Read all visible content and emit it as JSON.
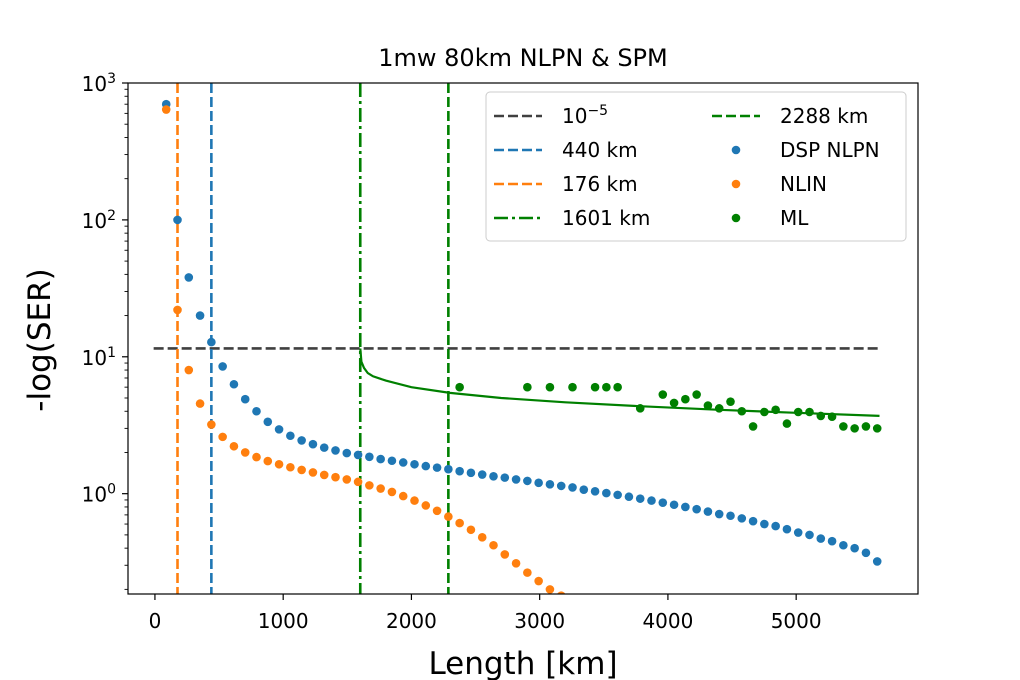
{
  "chart_data": {
    "type": "scatter",
    "title": "1mw 80km NLPN & SPM",
    "xlabel": "Length [km]",
    "ylabel": "-log(SER)",
    "yscale": "log",
    "xlim": [
      -210,
      5950
    ],
    "ylim": [
      0.185,
      1000
    ],
    "grid": false,
    "legend_placement": "top-right",
    "x_ticks": [
      {
        "value": 0,
        "label": "0"
      },
      {
        "value": 1000,
        "label": "1000"
      },
      {
        "value": 2000,
        "label": "2000"
      },
      {
        "value": 3000,
        "label": "3000"
      },
      {
        "value": 4000,
        "label": "4000"
      },
      {
        "value": 5000,
        "label": "5000"
      }
    ],
    "y_ticks": [
      {
        "value": 1,
        "base": "10",
        "exp": "0"
      },
      {
        "value": 10,
        "base": "10",
        "exp": "1"
      },
      {
        "value": 100,
        "base": "10",
        "exp": "2"
      },
      {
        "value": 1000,
        "base": "10",
        "exp": "3"
      }
    ],
    "reference_lines": [
      {
        "kind": "hline",
        "y": 11.5,
        "x_range": [
          -10,
          5650
        ],
        "color": "#404040",
        "dash": "dashed",
        "legend": {
          "base": "10",
          "exp": "−5"
        }
      },
      {
        "kind": "vline",
        "x": 440,
        "color": "#1f77b4",
        "dash": "dashed",
        "legend": "440 km"
      },
      {
        "kind": "vline",
        "x": 176,
        "color": "#ff7f0e",
        "dash": "dashed",
        "legend": "176 km"
      },
      {
        "kind": "vline",
        "x": 1601,
        "color": "#008000",
        "dash": "dashdot",
        "legend": "1601 km"
      },
      {
        "kind": "vline",
        "x": 2288,
        "color": "#008000",
        "dash": "dashed",
        "legend": "2288 km"
      }
    ],
    "fit_curve": {
      "color": "#008000",
      "x": [
        1601,
        1610,
        1630,
        1660,
        1700,
        1800,
        2000,
        2300,
        2700,
        3200,
        3800,
        4400,
        5000,
        5650
      ],
      "y": [
        11.5,
        9.2,
        8.3,
        7.6,
        7.2,
        6.7,
        6.0,
        5.45,
        5.0,
        4.65,
        4.35,
        4.1,
        3.9,
        3.7
      ]
    },
    "series": [
      {
        "name": "DSP NLPN",
        "color": "#1f77b4",
        "x": [
          88,
          176,
          264,
          352,
          440,
          528,
          616,
          704,
          792,
          880,
          968,
          1056,
          1144,
          1232,
          1320,
          1408,
          1496,
          1584,
          1672,
          1760,
          1848,
          1936,
          2024,
          2112,
          2200,
          2288,
          2376,
          2464,
          2552,
          2640,
          2728,
          2816,
          2904,
          2992,
          3080,
          3168,
          3256,
          3344,
          3432,
          3520,
          3608,
          3696,
          3784,
          3872,
          3960,
          4048,
          4136,
          4224,
          4312,
          4400,
          4488,
          4576,
          4664,
          4752,
          4840,
          4928,
          5016,
          5104,
          5192,
          5280,
          5368,
          5456,
          5544,
          5632
        ],
        "y": [
          700,
          100,
          38,
          20,
          12.8,
          8.5,
          6.3,
          4.9,
          4.0,
          3.35,
          2.95,
          2.65,
          2.45,
          2.3,
          2.17,
          2.07,
          1.98,
          1.92,
          1.86,
          1.79,
          1.74,
          1.69,
          1.64,
          1.59,
          1.55,
          1.51,
          1.46,
          1.42,
          1.38,
          1.34,
          1.31,
          1.27,
          1.24,
          1.2,
          1.17,
          1.14,
          1.11,
          1.07,
          1.04,
          1.01,
          0.98,
          0.95,
          0.92,
          0.89,
          0.86,
          0.83,
          0.8,
          0.77,
          0.74,
          0.71,
          0.69,
          0.66,
          0.63,
          0.6,
          0.58,
          0.55,
          0.52,
          0.5,
          0.47,
          0.45,
          0.42,
          0.4,
          0.37,
          0.32
        ]
      },
      {
        "name": "NLIN",
        "color": "#ff7f0e",
        "x": [
          88,
          176,
          264,
          352,
          440,
          528,
          616,
          704,
          792,
          880,
          968,
          1056,
          1144,
          1232,
          1320,
          1408,
          1496,
          1584,
          1672,
          1760,
          1848,
          1936,
          2024,
          2112,
          2200,
          2288,
          2376,
          2464,
          2552,
          2640,
          2728,
          2816,
          2904,
          2992,
          3080,
          3168
        ],
        "y": [
          640,
          22,
          8,
          4.55,
          3.2,
          2.6,
          2.22,
          2.0,
          1.85,
          1.73,
          1.64,
          1.56,
          1.49,
          1.43,
          1.37,
          1.32,
          1.27,
          1.22,
          1.15,
          1.09,
          1.03,
          0.96,
          0.89,
          0.82,
          0.75,
          0.68,
          0.61,
          0.545,
          0.48,
          0.42,
          0.36,
          0.31,
          0.265,
          0.23,
          0.2,
          0.18
        ]
      },
      {
        "name": "ML",
        "color": "#008000",
        "x": [
          2376,
          2904,
          3080,
          3256,
          3432,
          3520,
          3608,
          3784,
          3960,
          4048,
          4136,
          4224,
          4312,
          4400,
          4488,
          4576,
          4664,
          4752,
          4840,
          4928,
          5016,
          5104,
          5192,
          5280,
          5368,
          5456,
          5544,
          5632
        ],
        "y": [
          6.0,
          6.0,
          6.0,
          6.0,
          6.0,
          6.0,
          6.0,
          4.2,
          5.3,
          4.6,
          4.9,
          5.3,
          4.4,
          4.2,
          4.7,
          4.0,
          3.1,
          3.95,
          4.1,
          3.25,
          3.95,
          3.95,
          3.7,
          3.65,
          3.1,
          3.0,
          3.1,
          3.0
        ]
      }
    ]
  }
}
